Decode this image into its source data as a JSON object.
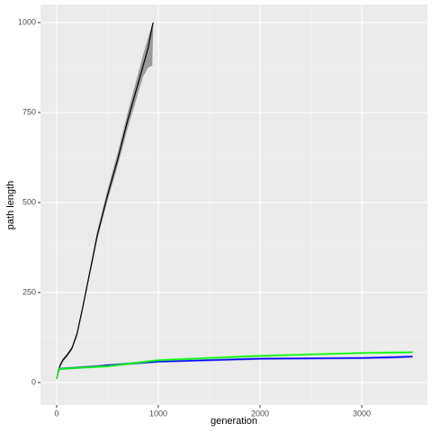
{
  "chart_data": {
    "type": "line",
    "x_label": "generation",
    "y_label": "path length",
    "xlim": [
      -159,
      3646
    ],
    "ylim": [
      -62.5,
      1050
    ],
    "xticks": [
      0,
      1000,
      2000,
      3000
    ],
    "yticks": [
      0,
      250,
      500,
      750,
      1000
    ],
    "grid": true,
    "series": [
      {
        "color": "#000000",
        "band_color": "#595959",
        "x": [
          0,
          30,
          60,
          100,
          150,
          200,
          250,
          300,
          350,
          400,
          450,
          500,
          550,
          600,
          650,
          700,
          750,
          800,
          850,
          900,
          940,
          950
        ],
        "values": [
          10,
          45,
          62,
          75,
          95,
          135,
          200,
          270,
          340,
          410,
          465,
          520,
          570,
          620,
          675,
          730,
          780,
          830,
          880,
          930,
          990,
          1000
        ],
        "lower": [
          8,
          40,
          57,
          70,
          90,
          128,
          192,
          262,
          330,
          398,
          452,
          505,
          553,
          602,
          655,
          708,
          755,
          803,
          850,
          875,
          880,
          990
        ],
        "upper": [
          12,
          50,
          67,
          80,
          100,
          142,
          208,
          278,
          350,
          422,
          478,
          535,
          587,
          638,
          695,
          752,
          805,
          857,
          910,
          960,
          995,
          1000
        ]
      },
      {
        "color": "#0000ff",
        "band_color": "#0000ff",
        "x": [
          0,
          20,
          400,
          500,
          1000,
          1500,
          2000,
          2500,
          3000,
          3300,
          3500
        ],
        "values": [
          10,
          38,
          45,
          48,
          58,
          62,
          66,
          67,
          68,
          70,
          72
        ],
        "lower": [
          8,
          35,
          42,
          45,
          55,
          59,
          63,
          64,
          65,
          67,
          69
        ],
        "upper": [
          12,
          41,
          48,
          51,
          61,
          65,
          69,
          70,
          71,
          73,
          75
        ]
      },
      {
        "color": "#00ff00",
        "band_color": "#00ff00",
        "x": [
          0,
          20,
          500,
          1000,
          1500,
          2000,
          2500,
          3000,
          3500
        ],
        "values": [
          10,
          38,
          45,
          62,
          68,
          74,
          78,
          82,
          84
        ],
        "lower": [
          8,
          35,
          42,
          59,
          65,
          71,
          75,
          79,
          81
        ],
        "upper": [
          12,
          41,
          48,
          65,
          71,
          77,
          81,
          85,
          87
        ]
      }
    ]
  }
}
